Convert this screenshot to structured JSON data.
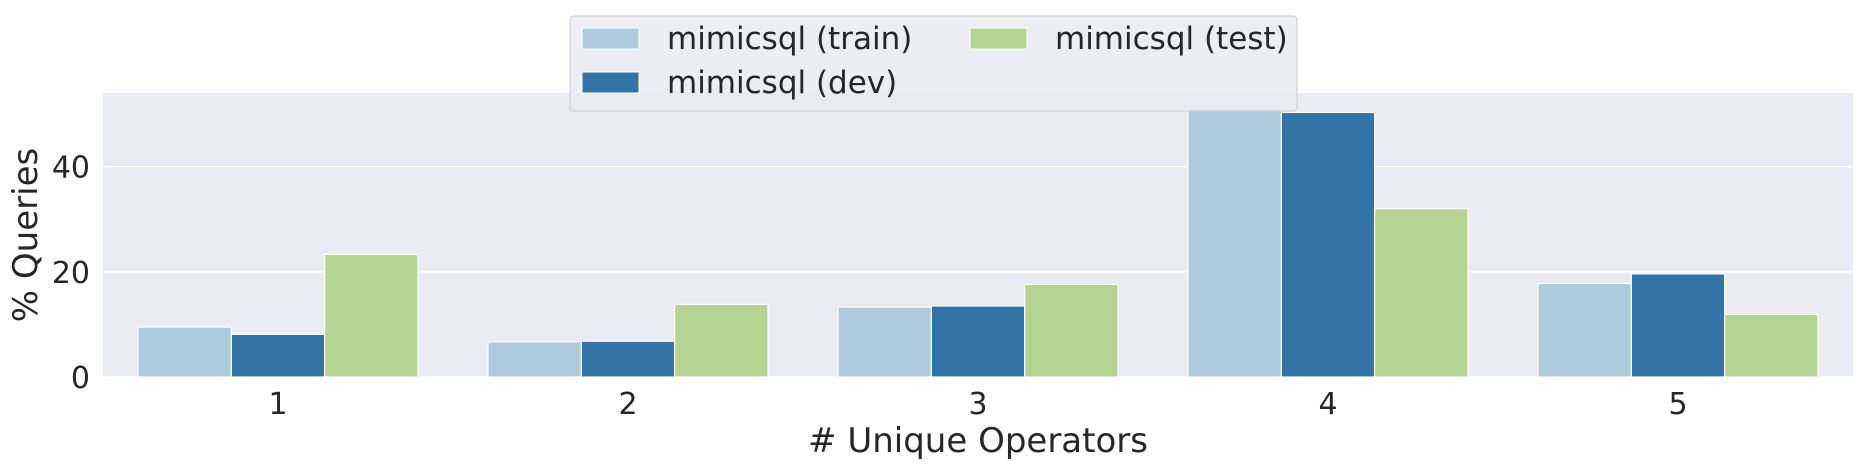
{
  "chart_data": {
    "type": "bar",
    "title": "",
    "xlabel": "# Unique Operators",
    "ylabel": "% Queries",
    "categories": [
      "1",
      "2",
      "3",
      "4",
      "5"
    ],
    "ylim": [
      0,
      54
    ],
    "yticks": [
      0,
      20,
      40
    ],
    "grid": true,
    "legend_position": "top-center",
    "series": [
      {
        "name": "mimicsql (train)",
        "color": "#aecbdd",
        "values": [
          9.5,
          6.7,
          13.3,
          51.0,
          17.8
        ]
      },
      {
        "name": "mimicsql (dev)",
        "color": "#3174a5",
        "values": [
          8.1,
          6.8,
          13.5,
          50.3,
          19.6
        ]
      },
      {
        "name": "mimicsql (test)",
        "color": "#b4d591",
        "values": [
          23.3,
          13.8,
          17.6,
          32.0,
          11.9
        ]
      }
    ]
  }
}
